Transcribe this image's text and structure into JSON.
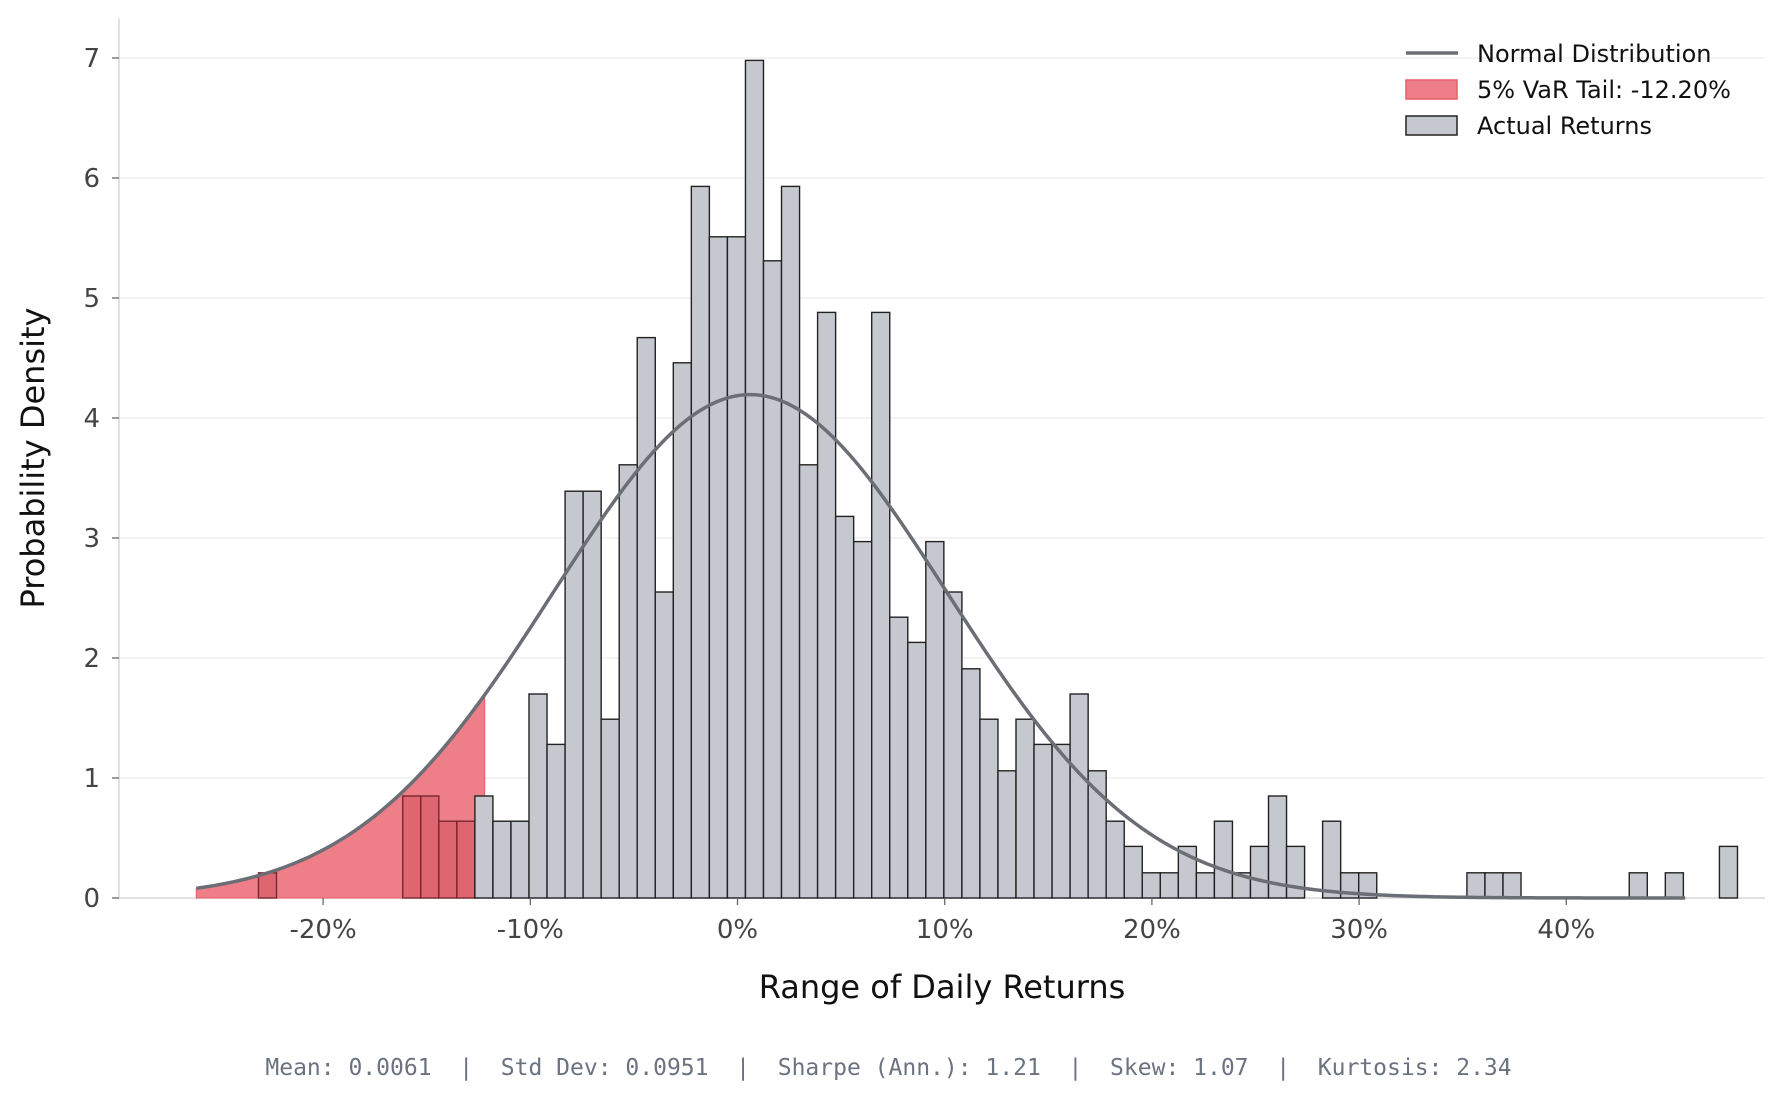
{
  "chart_data": {
    "type": "bar",
    "subtype": "histogram",
    "xlabel": "Range of Daily Returns",
    "ylabel": "Probability Density",
    "xlim": [
      -0.2735,
      0.4728
    ],
    "ylim": [
      0,
      7.35
    ],
    "x_ticks": [
      -0.2,
      -0.1,
      0.0,
      0.1,
      0.2,
      0.3,
      0.4
    ],
    "x_tick_labels": [
      "-20%",
      "-10%",
      "0%",
      "10%",
      "20%",
      "30%",
      "40%"
    ],
    "y_ticks": [
      0,
      1,
      2,
      3,
      4,
      5,
      6,
      7
    ],
    "y_tick_labels": [
      "0",
      "1",
      "2",
      "3",
      "4",
      "5",
      "6",
      "7"
    ],
    "grid": "horizontal",
    "legend_position": "top-right",
    "legend": [
      "Normal Distribution",
      "5% VaR Tail: -12.20%",
      "Actual Returns"
    ],
    "colors": {
      "bars": "#c5c9cf",
      "bar_edge": "#222222",
      "tail_fill": "#ee7f88",
      "tail_bars": "#d9626c",
      "normal_line": "#6b6e75",
      "grid": "#ececec"
    },
    "histogram": {
      "bin_start": -0.2312,
      "bin_width": 0.008705,
      "densities": [
        0.21,
        0,
        0,
        0,
        0,
        0,
        0,
        0,
        0.85,
        0.85,
        0.64,
        0.64,
        0.85,
        0.64,
        0.64,
        1.7,
        1.28,
        3.39,
        3.39,
        1.49,
        3.61,
        4.67,
        2.55,
        4.46,
        5.93,
        5.51,
        5.51,
        6.98,
        5.31,
        5.93,
        3.61,
        4.88,
        3.18,
        2.97,
        4.88,
        2.34,
        2.13,
        2.97,
        2.55,
        1.91,
        1.49,
        1.06,
        1.49,
        1.28,
        1.28,
        1.7,
        1.06,
        0.64,
        0.43,
        0.21,
        0.21,
        0.43,
        0.21,
        0.64,
        0.21,
        0.43,
        0.85,
        0.43,
        0,
        0.64,
        0.21,
        0.21,
        0,
        0,
        0,
        0,
        0,
        0.21,
        0.21,
        0.21,
        0,
        0,
        0,
        0,
        0,
        0,
        0.21,
        0,
        0.21,
        0,
        0,
        0.43
      ]
    },
    "normal_distribution": {
      "mean": 0.0061,
      "std": 0.0951,
      "x_range": [
        -0.2612,
        0.4574
      ]
    },
    "var_tail": {
      "threshold": -0.122,
      "label": "5% VaR Tail: -12.20%"
    },
    "stats_text": "Mean: 0.0061  |  Std Dev: 0.0951  |  Sharpe (Ann.): 1.21  |  Skew: 1.07  |  Kurtosis: 2.34"
  }
}
